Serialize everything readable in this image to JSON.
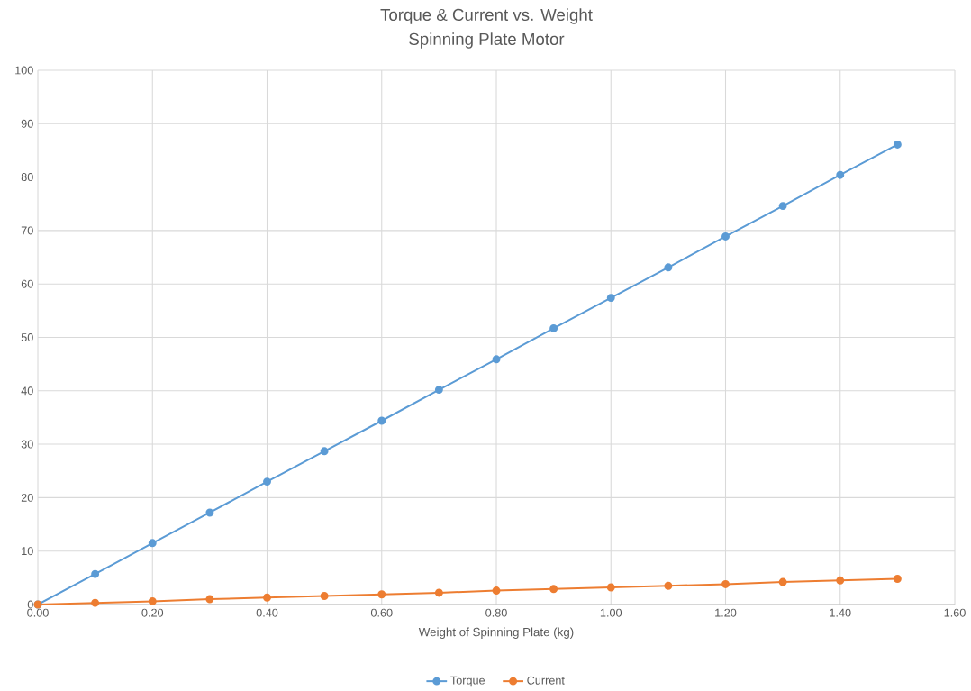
{
  "chart_data": {
    "type": "line",
    "title": "Torque & Current vs. Weight",
    "subtitle": "Spinning Plate Motor",
    "xlabel": "Weight of Spinning Plate (kg)",
    "x": [
      0,
      0.1,
      0.2,
      0.3,
      0.4,
      0.5,
      0.6,
      0.7,
      0.8,
      0.9,
      1.0,
      1.1,
      1.2,
      1.3,
      1.4,
      1.5
    ],
    "series": [
      {
        "name": "Torque",
        "color": "#5b9bd5",
        "values": [
          0,
          5.7,
          11.5,
          17.2,
          23.0,
          28.7,
          34.4,
          40.2,
          45.9,
          51.7,
          57.4,
          63.1,
          68.9,
          74.6,
          80.4,
          86.1
        ]
      },
      {
        "name": "Current",
        "color": "#ed7d31",
        "values": [
          0,
          0.3,
          0.6,
          1.0,
          1.3,
          1.6,
          1.9,
          2.2,
          2.6,
          2.9,
          3.2,
          3.5,
          3.8,
          4.2,
          4.5,
          4.8
        ]
      }
    ],
    "xlim": [
      0,
      1.6
    ],
    "ylim": [
      0,
      100
    ],
    "xticks": [
      {
        "value": 0,
        "label": "0.00"
      },
      {
        "value": 0.2,
        "label": "0.20"
      },
      {
        "value": 0.4,
        "label": "0.40"
      },
      {
        "value": 0.6,
        "label": "0.60"
      },
      {
        "value": 0.8,
        "label": "0.80"
      },
      {
        "value": 1.0,
        "label": "1.00"
      },
      {
        "value": 1.2,
        "label": "1.20"
      },
      {
        "value": 1.4,
        "label": "1.40"
      },
      {
        "value": 1.6,
        "label": "1.60"
      }
    ],
    "yticks": [
      0,
      10,
      20,
      30,
      40,
      50,
      60,
      70,
      80,
      90,
      100
    ],
    "grid": true,
    "legend": "bottom",
    "marker": "circle",
    "line_style": "solid"
  }
}
